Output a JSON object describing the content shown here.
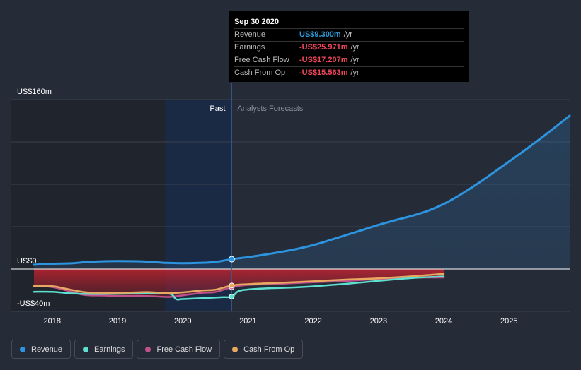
{
  "tooltip": {
    "date": "Sep 30 2020",
    "rows": [
      {
        "label": "Revenue",
        "value": "US$9.300m",
        "unit": "/yr",
        "color": "#2d9cdb"
      },
      {
        "label": "Earnings",
        "value": "-US$25.971m",
        "unit": "/yr",
        "color": "#f0465a"
      },
      {
        "label": "Free Cash Flow",
        "value": "-US$17.207m",
        "unit": "/yr",
        "color": "#f0465a"
      },
      {
        "label": "Cash From Op",
        "value": "-US$15.563m",
        "unit": "/yr",
        "color": "#f0465a"
      }
    ]
  },
  "legend": [
    {
      "label": "Revenue",
      "color": "#2d94e0"
    },
    {
      "label": "Earnings",
      "color": "#5ee0d0"
    },
    {
      "label": "Free Cash Flow",
      "color": "#c0508a"
    },
    {
      "label": "Cash From Op",
      "color": "#e8a860"
    }
  ],
  "chart_data": {
    "type": "line",
    "y_tick_labels": [
      "US$160m",
      "US$0",
      "-US$40m"
    ],
    "ylim": [
      -40,
      160
    ],
    "xlim": [
      2017.72,
      2025.93
    ],
    "x_tick_labels": [
      "2018",
      "2019",
      "2020",
      "2021",
      "2022",
      "2023",
      "2024",
      "2025"
    ],
    "x_ticks": [
      2018,
      2019,
      2020,
      2021,
      2022,
      2023,
      2024,
      2025
    ],
    "past_label": "Past",
    "forecast_label": "Analysts Forecasts",
    "divider_x": 2020.75,
    "shade_start_x": 2019.73,
    "grid": true,
    "series": [
      {
        "name": "Revenue",
        "color": "#2d94e0",
        "fill": true,
        "x": [
          2017.72,
          2018.0,
          2018.3,
          2018.5,
          2018.8,
          2019.0,
          2019.3,
          2019.5,
          2019.75,
          2020.0,
          2020.25,
          2020.5,
          2020.75,
          2021.0,
          2021.25,
          2021.5,
          2021.75,
          2022.0,
          2022.25,
          2022.5,
          2022.75,
          2023.0,
          2023.25,
          2023.5,
          2023.75,
          2024.0,
          2024.25,
          2024.5,
          2024.75,
          2025.0,
          2025.25,
          2025.5,
          2025.75,
          2025.93
        ],
        "y": [
          4.0,
          5.0,
          5.4,
          6.5,
          7.3,
          7.5,
          7.3,
          6.8,
          5.8,
          5.5,
          5.8,
          6.7,
          9.3,
          11.2,
          13.5,
          16.1,
          19.0,
          22.6,
          27.2,
          32.0,
          36.8,
          41.7,
          46.0,
          50.0,
          54.8,
          61.4,
          70.0,
          79.8,
          90.5,
          101.5,
          112.5,
          124.0,
          136.0,
          144.7
        ]
      },
      {
        "name": "Earnings",
        "color": "#5ee0d0",
        "marker_x": 2020.75,
        "marker_y": -25.971,
        "x": [
          2017.72,
          2018.0,
          2018.3,
          2018.6,
          2018.8,
          2019.0,
          2019.3,
          2019.5,
          2019.8,
          2019.9,
          2020.0,
          2020.3,
          2020.6,
          2020.75,
          2020.85,
          2021.0,
          2021.3,
          2021.6,
          2022.0,
          2022.5,
          2023.0,
          2023.5,
          2024.0
        ],
        "y": [
          -21.5,
          -21.5,
          -23.0,
          -23.5,
          -23.4,
          -23.4,
          -23.1,
          -22.6,
          -23.3,
          -28.5,
          -28.3,
          -27.5,
          -26.6,
          -26.0,
          -21.0,
          -19.3,
          -18.2,
          -17.6,
          -16.3,
          -14.0,
          -11.2,
          -8.6,
          -7.0
        ]
      },
      {
        "name": "Free Cash Flow",
        "color": "#c0508a",
        "marker_x": 2020.75,
        "marker_y": -17.207,
        "x": [
          2017.72,
          2018.0,
          2018.3,
          2018.5,
          2018.8,
          2019.0,
          2019.3,
          2019.5,
          2019.8,
          2020.0,
          2020.3,
          2020.5,
          2020.75,
          2021.0,
          2021.5,
          2022.0,
          2022.5,
          2023.0,
          2023.5,
          2024.0
        ],
        "y": [
          -16.0,
          -17.0,
          -21.5,
          -24.5,
          -25.0,
          -25.5,
          -25.3,
          -25.6,
          -26.3,
          -24.8,
          -22.4,
          -21.7,
          -17.2,
          -15.0,
          -13.9,
          -12.5,
          -11.3,
          -9.5,
          -8.1,
          -8.0
        ]
      },
      {
        "name": "Cash From Op",
        "color": "#e8a860",
        "marker_x": 2020.75,
        "marker_y": -15.563,
        "x": [
          2017.72,
          2018.0,
          2018.2,
          2018.5,
          2018.8,
          2019.0,
          2019.3,
          2019.5,
          2019.8,
          2020.0,
          2020.3,
          2020.5,
          2020.75,
          2021.0,
          2021.5,
          2022.0,
          2022.5,
          2023.0,
          2023.5,
          2024.0
        ],
        "y": [
          -16.2,
          -16.2,
          -18.5,
          -21.8,
          -22.4,
          -22.4,
          -22.0,
          -21.8,
          -22.8,
          -22.0,
          -20.2,
          -19.5,
          -15.6,
          -14.3,
          -13.0,
          -11.6,
          -10.0,
          -8.8,
          -6.9,
          -4.5
        ]
      }
    ]
  }
}
